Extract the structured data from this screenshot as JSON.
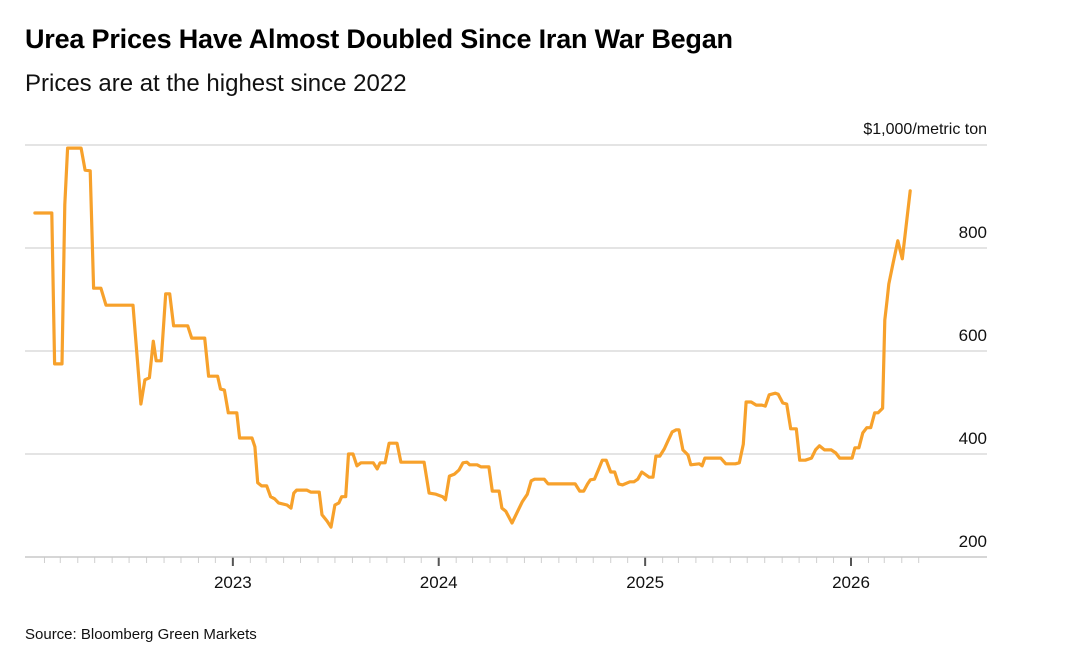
{
  "chart_data": {
    "type": "line",
    "title": "Urea Prices Have Almost Doubled Since Iran War Began",
    "subtitle": "Prices are at the highest since 2022",
    "ylabel": "$1,000/metric ton",
    "xlabel": "",
    "source": "Source: Bloomberg Green Markets",
    "ylim": [
      200,
      1000
    ],
    "yticks": [
      200,
      400,
      600,
      800
    ],
    "ytick_labels": [
      "200",
      "400",
      "600",
      "800"
    ],
    "xlim": [
      "2022-01-01",
      "2026-05-18"
    ],
    "xticks": [
      "2023-01-01",
      "2024-01-01",
      "2025-01-01",
      "2026-01-01"
    ],
    "xtick_labels": [
      "2023",
      "2024",
      "2025",
      "2026"
    ],
    "minor_ticks": "monthly",
    "grid": true,
    "y_axis_position": "right",
    "series_color": "#f7a12b",
    "series": [
      {
        "name": "Urea price",
        "points": [
          [
            "2022-01-15",
            868
          ],
          [
            "2022-02-14",
            868
          ],
          [
            "2022-02-19",
            575
          ],
          [
            "2022-03-04",
            575
          ],
          [
            "2022-03-09",
            884
          ],
          [
            "2022-03-14",
            994
          ],
          [
            "2022-04-07",
            994
          ],
          [
            "2022-04-14",
            951
          ],
          [
            "2022-04-23",
            950
          ],
          [
            "2022-04-29",
            722
          ],
          [
            "2022-05-12",
            722
          ],
          [
            "2022-05-21",
            689
          ],
          [
            "2022-07-08",
            689
          ],
          [
            "2022-07-22",
            497
          ],
          [
            "2022-07-29",
            544
          ],
          [
            "2022-08-06",
            548
          ],
          [
            "2022-08-13",
            619
          ],
          [
            "2022-08-18",
            581
          ],
          [
            "2022-08-27",
            581
          ],
          [
            "2022-09-04",
            711
          ],
          [
            "2022-09-11",
            711
          ],
          [
            "2022-09-18",
            649
          ],
          [
            "2022-10-13",
            649
          ],
          [
            "2022-10-20",
            625
          ],
          [
            "2022-11-12",
            625
          ],
          [
            "2022-11-19",
            551
          ],
          [
            "2022-12-05",
            551
          ],
          [
            "2022-12-10",
            526
          ],
          [
            "2022-12-17",
            524
          ],
          [
            "2022-12-24",
            480
          ],
          [
            "2023-01-08",
            480
          ],
          [
            "2023-01-13",
            431
          ],
          [
            "2023-02-04",
            431
          ],
          [
            "2023-02-09",
            414
          ],
          [
            "2023-02-14",
            344
          ],
          [
            "2023-02-21",
            338
          ],
          [
            "2023-03-02",
            338
          ],
          [
            "2023-03-09",
            317
          ],
          [
            "2023-03-16",
            313
          ],
          [
            "2023-03-23",
            305
          ],
          [
            "2023-04-07",
            301
          ],
          [
            "2023-04-14",
            295
          ],
          [
            "2023-04-19",
            324
          ],
          [
            "2023-04-24",
            330
          ],
          [
            "2023-05-12",
            330
          ],
          [
            "2023-05-19",
            326
          ],
          [
            "2023-06-03",
            326
          ],
          [
            "2023-06-08",
            282
          ],
          [
            "2023-06-17",
            270
          ],
          [
            "2023-06-24",
            258
          ],
          [
            "2023-07-01",
            301
          ],
          [
            "2023-07-08",
            305
          ],
          [
            "2023-07-13",
            317
          ],
          [
            "2023-07-20",
            317
          ],
          [
            "2023-07-25",
            400
          ],
          [
            "2023-08-02",
            400
          ],
          [
            "2023-08-09",
            377
          ],
          [
            "2023-08-16",
            383
          ],
          [
            "2023-09-07",
            383
          ],
          [
            "2023-09-14",
            371
          ],
          [
            "2023-09-19",
            383
          ],
          [
            "2023-09-28",
            383
          ],
          [
            "2023-10-05",
            421
          ],
          [
            "2023-10-19",
            421
          ],
          [
            "2023-10-26",
            384
          ],
          [
            "2023-12-06",
            384
          ],
          [
            "2023-12-15",
            324
          ],
          [
            "2023-12-27",
            322
          ],
          [
            "2024-01-08",
            317
          ],
          [
            "2024-01-13",
            311
          ],
          [
            "2024-01-20",
            357
          ],
          [
            "2024-01-29",
            361
          ],
          [
            "2024-02-06",
            369
          ],
          [
            "2024-02-13",
            383
          ],
          [
            "2024-02-20",
            384
          ],
          [
            "2024-02-25",
            379
          ],
          [
            "2024-03-09",
            379
          ],
          [
            "2024-03-16",
            375
          ],
          [
            "2024-03-30",
            375
          ],
          [
            "2024-04-05",
            328
          ],
          [
            "2024-04-17",
            328
          ],
          [
            "2024-04-22",
            295
          ],
          [
            "2024-04-29",
            289
          ],
          [
            "2024-05-10",
            266
          ],
          [
            "2024-05-20",
            289
          ],
          [
            "2024-05-28",
            307
          ],
          [
            "2024-06-06",
            322
          ],
          [
            "2024-06-13",
            348
          ],
          [
            "2024-06-19",
            351
          ],
          [
            "2024-07-06",
            351
          ],
          [
            "2024-07-13",
            342
          ],
          [
            "2024-08-30",
            342
          ],
          [
            "2024-09-07",
            328
          ],
          [
            "2024-09-14",
            328
          ],
          [
            "2024-09-21",
            342
          ],
          [
            "2024-09-26",
            350
          ],
          [
            "2024-10-03",
            351
          ],
          [
            "2024-10-10",
            369
          ],
          [
            "2024-10-17",
            388
          ],
          [
            "2024-10-24",
            388
          ],
          [
            "2024-11-01",
            365
          ],
          [
            "2024-11-08",
            365
          ],
          [
            "2024-11-15",
            342
          ],
          [
            "2024-11-22",
            340
          ],
          [
            "2024-12-05",
            346
          ],
          [
            "2024-12-12",
            346
          ],
          [
            "2024-12-19",
            351
          ],
          [
            "2024-12-26",
            365
          ],
          [
            "2025-01-08",
            355
          ],
          [
            "2025-01-15",
            355
          ],
          [
            "2025-01-20",
            396
          ],
          [
            "2025-01-27",
            396
          ],
          [
            "2025-02-04",
            410
          ],
          [
            "2025-02-11",
            427
          ],
          [
            "2025-02-18",
            443
          ],
          [
            "2025-02-25",
            447
          ],
          [
            "2025-03-02",
            447
          ],
          [
            "2025-03-09",
            408
          ],
          [
            "2025-03-18",
            398
          ],
          [
            "2025-03-23",
            379
          ],
          [
            "2025-04-07",
            381
          ],
          [
            "2025-04-12",
            377
          ],
          [
            "2025-04-17",
            392
          ],
          [
            "2025-05-15",
            392
          ],
          [
            "2025-05-24",
            381
          ],
          [
            "2025-06-10",
            381
          ],
          [
            "2025-06-17",
            383
          ],
          [
            "2025-06-24",
            419
          ],
          [
            "2025-06-29",
            501
          ],
          [
            "2025-07-08",
            501
          ],
          [
            "2025-07-17",
            495
          ],
          [
            "2025-07-27",
            495
          ],
          [
            "2025-08-02",
            493
          ],
          [
            "2025-08-09",
            515
          ],
          [
            "2025-08-20",
            518
          ],
          [
            "2025-08-25",
            516
          ],
          [
            "2025-09-02",
            499
          ],
          [
            "2025-09-09",
            497
          ],
          [
            "2025-09-16",
            449
          ],
          [
            "2025-09-26",
            449
          ],
          [
            "2025-10-02",
            388
          ],
          [
            "2025-10-12",
            388
          ],
          [
            "2025-10-23",
            392
          ],
          [
            "2025-10-30",
            408
          ],
          [
            "2025-11-06",
            416
          ],
          [
            "2025-11-15",
            408
          ],
          [
            "2025-11-27",
            408
          ],
          [
            "2025-12-05",
            402
          ],
          [
            "2025-12-12",
            392
          ],
          [
            "2026-01-03",
            392
          ],
          [
            "2026-01-08",
            412
          ],
          [
            "2026-01-15",
            412
          ],
          [
            "2026-01-22",
            441
          ],
          [
            "2026-01-29",
            451
          ],
          [
            "2026-02-05",
            451
          ],
          [
            "2026-02-12",
            480
          ],
          [
            "2026-02-18",
            480
          ],
          [
            "2026-02-26",
            489
          ],
          [
            "2026-03-02",
            660
          ],
          [
            "2026-03-06",
            699
          ],
          [
            "2026-03-09",
            730
          ],
          [
            "2026-03-16",
            767
          ],
          [
            "2026-03-25",
            814
          ],
          [
            "2026-04-02",
            779
          ],
          [
            "2026-04-16",
            911
          ]
        ]
      }
    ]
  }
}
